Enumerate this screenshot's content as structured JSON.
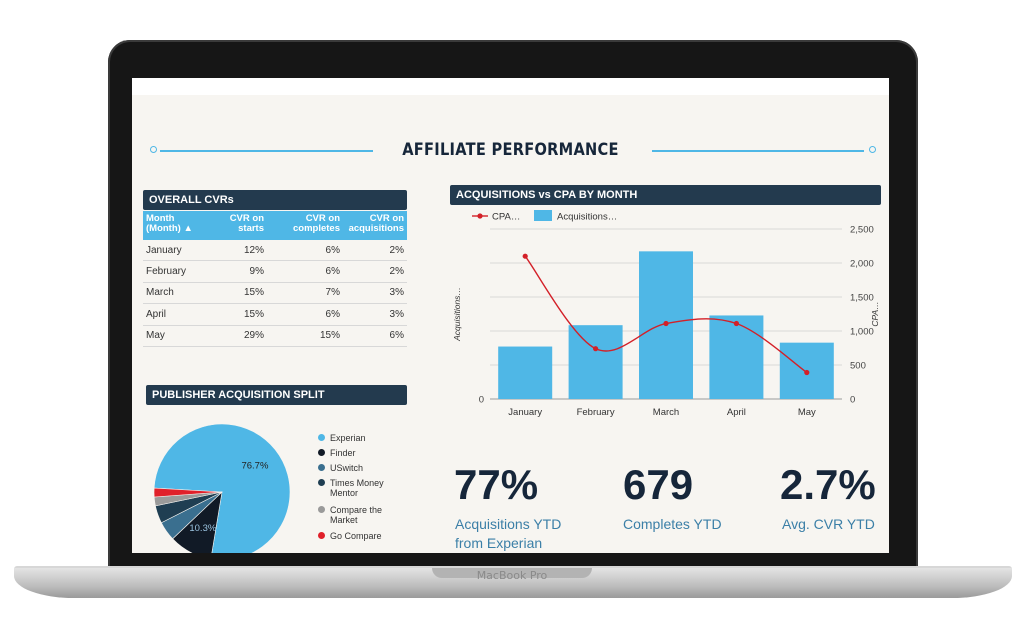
{
  "device": {
    "brand_label": "MacBook Pro"
  },
  "dashboard": {
    "title": "AFFILIATE PERFORMANCE",
    "accent_color": "#4fb7e6",
    "panel_header_color": "#233a4e"
  },
  "cvr_table": {
    "title": "OVERALL CVRs",
    "columns": [
      "Month (Month) ▲",
      "CVR on starts",
      "CVR on completes",
      "CVR on acquisitions"
    ],
    "rows": [
      {
        "month": "January",
        "starts": "12%",
        "completes": "6%",
        "acquisitions": "2%"
      },
      {
        "month": "February",
        "starts": "9%",
        "completes": "6%",
        "acquisitions": "2%"
      },
      {
        "month": "March",
        "starts": "15%",
        "completes": "7%",
        "acquisitions": "3%"
      },
      {
        "month": "April",
        "starts": "15%",
        "completes": "6%",
        "acquisitions": "3%"
      },
      {
        "month": "May",
        "starts": "29%",
        "completes": "15%",
        "acquisitions": "6%"
      }
    ]
  },
  "publisher_split": {
    "title": "PUBLISHER ACQUISITION SPLIT",
    "legend": [
      {
        "label": "Experian",
        "color": "#4fb7e6"
      },
      {
        "label": "Finder",
        "color": "#111a26"
      },
      {
        "label": "USwitch",
        "color": "#3a6f8f"
      },
      {
        "label": "Times Money Mentor",
        "color": "#1f3e52"
      },
      {
        "label": "Compare the Market",
        "color": "#9a9a9a"
      },
      {
        "label": "Go Compare",
        "color": "#e0202a"
      }
    ]
  },
  "combo_chart": {
    "title": "ACQUISITIONS vs CPA BY MONTH"
  },
  "chart_data": [
    {
      "type": "pie",
      "title": "PUBLISHER ACQUISITION SPLIT",
      "slices": [
        {
          "label": "Experian",
          "value": 76.7,
          "color": "#4fb7e6"
        },
        {
          "label": "Finder",
          "value": 10.3,
          "color": "#111a26"
        },
        {
          "label": "USwitch",
          "value": 4.6,
          "color": "#3a6f8f"
        },
        {
          "label": "Times Money Mentor",
          "value": 4.2,
          "color": "#1f3e52"
        },
        {
          "label": "Compare the Market",
          "value": 2.1,
          "color": "#9a9a9a"
        },
        {
          "label": "Go Compare",
          "value": 2.1,
          "color": "#e0202a"
        }
      ],
      "data_labels": [
        "76.7%",
        "10.3%"
      ]
    },
    {
      "type": "bar",
      "title": "ACQUISITIONS vs CPA BY MONTH",
      "categories": [
        "January",
        "February",
        "March",
        "April",
        "May"
      ],
      "series": [
        {
          "name": "Acquisitions…",
          "kind": "bar",
          "axis": "left",
          "values": [
            54,
            76,
            152,
            86,
            58
          ],
          "color": "#4fb7e6"
        },
        {
          "name": "CPA…",
          "kind": "line",
          "axis": "right",
          "values": [
            2100,
            740,
            1110,
            1110,
            390
          ],
          "color": "#d32028"
        }
      ],
      "ylabel": "Acquisitions…",
      "y2label": "CPA…",
      "ylim": [
        0,
        175
      ],
      "y2lim": [
        0,
        2500
      ],
      "y2ticks": [
        "0",
        "500",
        "1,000",
        "1,500",
        "2,000",
        "2,500"
      ],
      "y_ticks": [
        "0"
      ],
      "grid": true,
      "legend": "top-left"
    }
  ],
  "kpis": [
    {
      "value": "77%",
      "label_line1": "Acquisitions YTD",
      "label_line2": "from Experian"
    },
    {
      "value": "679",
      "label_line1": "Completes YTD",
      "label_line2": ""
    },
    {
      "value": "2.7%",
      "label_line1": "Avg. CVR YTD",
      "label_line2": ""
    }
  ]
}
